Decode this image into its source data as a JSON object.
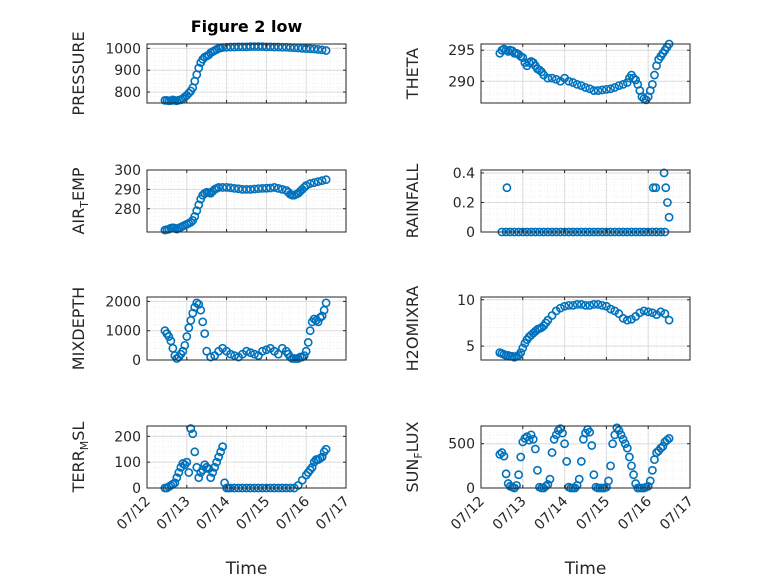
{
  "colors": {
    "marker": "#0072BD",
    "grid_major": "#dcdcdc",
    "grid_minor": "#ebebeb",
    "axis": "#262626"
  },
  "chart_data": [
    {
      "id": "pressure",
      "type": "scatter",
      "title": "Figure 2 low",
      "ylabel": "PRESSURE",
      "ylim": [
        750,
        1020
      ],
      "yticks": [
        800,
        900,
        1000
      ],
      "xlabel": "",
      "xlim": [
        0,
        5
      ],
      "xticks": [
        0,
        1,
        2,
        3,
        4,
        5
      ],
      "xticklabels": [
        "07/12",
        "07/13",
        "07/14",
        "07/15",
        "07/16",
        "07/17"
      ],
      "show_xticklabels": false,
      "grid": true,
      "marker": "o",
      "x": [
        0.45,
        0.5,
        0.55,
        0.6,
        0.65,
        0.7,
        0.75,
        0.8,
        0.85,
        0.9,
        0.95,
        1.0,
        1.05,
        1.1,
        1.15,
        1.2,
        1.25,
        1.3,
        1.35,
        1.4,
        1.45,
        1.5,
        1.55,
        1.6,
        1.65,
        1.7,
        1.75,
        1.8,
        1.85,
        1.9,
        2.0,
        2.1,
        2.2,
        2.3,
        2.4,
        2.5,
        2.6,
        2.7,
        2.8,
        2.9,
        3.0,
        3.1,
        3.2,
        3.3,
        3.4,
        3.5,
        3.6,
        3.7,
        3.8,
        3.9,
        4.0,
        4.1,
        4.2,
        4.3,
        4.4,
        4.5
      ],
      "y": [
        762,
        762,
        760,
        761,
        764,
        762,
        760,
        763,
        765,
        770,
        778,
        785,
        795,
        805,
        820,
        850,
        880,
        910,
        935,
        950,
        960,
        965,
        970,
        980,
        985,
        990,
        995,
        1000,
        1002,
        1004,
        1005,
        1006,
        1006,
        1007,
        1007,
        1007,
        1008,
        1008,
        1008,
        1008,
        1007,
        1007,
        1006,
        1006,
        1005,
        1005,
        1004,
        1003,
        1002,
        1000,
        999,
        998,
        997,
        995,
        993,
        990
      ]
    },
    {
      "id": "theta",
      "type": "scatter",
      "ylabel": "THETA",
      "ylim": [
        286.5,
        296
      ],
      "yticks": [
        290,
        295
      ],
      "xlabel": "",
      "xlim": [
        0,
        5
      ],
      "xticks": [
        0,
        1,
        2,
        3,
        4,
        5
      ],
      "xticklabels": [
        "07/12",
        "07/13",
        "07/14",
        "07/15",
        "07/16",
        "07/17"
      ],
      "show_xticklabels": false,
      "grid": true,
      "marker": "o",
      "x": [
        0.45,
        0.5,
        0.55,
        0.6,
        0.65,
        0.7,
        0.75,
        0.8,
        0.85,
        0.9,
        0.95,
        1.0,
        1.05,
        1.1,
        1.15,
        1.2,
        1.25,
        1.3,
        1.35,
        1.4,
        1.45,
        1.5,
        1.6,
        1.7,
        1.8,
        1.9,
        2.0,
        2.1,
        2.2,
        2.3,
        2.4,
        2.5,
        2.6,
        2.7,
        2.8,
        2.9,
        3.0,
        3.1,
        3.2,
        3.3,
        3.4,
        3.5,
        3.55,
        3.6,
        3.65,
        3.7,
        3.75,
        3.8,
        3.85,
        3.9,
        3.95,
        4.0,
        4.05,
        4.1,
        4.15,
        4.2,
        4.25,
        4.3,
        4.35,
        4.4,
        4.45,
        4.5
      ],
      "y": [
        294.5,
        295,
        295.2,
        295,
        294.8,
        295,
        294.9,
        294.5,
        294.5,
        294.3,
        294,
        293.8,
        293,
        292.5,
        293,
        293.2,
        293,
        292.5,
        292,
        291.8,
        291.5,
        291,
        290.5,
        290.5,
        290.3,
        290,
        290.5,
        290,
        289.8,
        289.5,
        289.3,
        289,
        288.8,
        288.5,
        288.5,
        288.6,
        288.7,
        288.8,
        289,
        289.3,
        289.5,
        289.8,
        290.5,
        291,
        290.5,
        290.2,
        289.5,
        288.5,
        287.5,
        287.2,
        287,
        287.5,
        288.5,
        289.5,
        291,
        292.5,
        293.5,
        294,
        294.5,
        295,
        295.5,
        296
      ]
    },
    {
      "id": "air_temp",
      "type": "scatter",
      "ylabel": "AIR",
      "ylabel_sub": "T",
      "ylabel_tail": "EMP",
      "ylim": [
        268,
        300
      ],
      "yticks": [
        280,
        290,
        300
      ],
      "xlabel": "",
      "xlim": [
        0,
        5
      ],
      "xticks": [
        0,
        1,
        2,
        3,
        4,
        5
      ],
      "xticklabels": [
        "07/12",
        "07/13",
        "07/14",
        "07/15",
        "07/16",
        "07/17"
      ],
      "show_xticklabels": false,
      "grid": true,
      "marker": "o",
      "x": [
        0.45,
        0.5,
        0.55,
        0.6,
        0.65,
        0.7,
        0.75,
        0.8,
        0.85,
        0.9,
        0.95,
        1.0,
        1.05,
        1.1,
        1.15,
        1.2,
        1.25,
        1.3,
        1.35,
        1.4,
        1.45,
        1.5,
        1.55,
        1.6,
        1.65,
        1.7,
        1.75,
        1.8,
        1.9,
        2.0,
        2.1,
        2.2,
        2.3,
        2.4,
        2.5,
        2.6,
        2.7,
        2.8,
        2.9,
        3.0,
        3.1,
        3.2,
        3.3,
        3.4,
        3.5,
        3.55,
        3.6,
        3.65,
        3.7,
        3.75,
        3.8,
        3.85,
        3.9,
        3.95,
        4.0,
        4.1,
        4.2,
        4.3,
        4.4,
        4.5
      ],
      "y": [
        269,
        269.2,
        269.5,
        270,
        270.2,
        270,
        269.5,
        270,
        270.5,
        271,
        271.5,
        272,
        272.5,
        273,
        274,
        276,
        279,
        282,
        285,
        287,
        288,
        288.5,
        288.3,
        288,
        289,
        290,
        290.5,
        291,
        291,
        291,
        290.8,
        290.5,
        290.3,
        290,
        290,
        290,
        290.2,
        290.4,
        290.5,
        290.6,
        290.7,
        291,
        290.5,
        290,
        289.5,
        288.5,
        287.5,
        287,
        287,
        287.5,
        288,
        289,
        290,
        291,
        292,
        293,
        293.5,
        294,
        294.5,
        295
      ]
    },
    {
      "id": "rainfall",
      "type": "scatter",
      "ylabel": "RAINFALL",
      "ylim": [
        0,
        0.42
      ],
      "yticks": [
        0,
        0.2,
        0.4
      ],
      "xlabel": "",
      "xlim": [
        0,
        5
      ],
      "xticks": [
        0,
        1,
        2,
        3,
        4,
        5
      ],
      "xticklabels": [
        "07/12",
        "07/13",
        "07/14",
        "07/15",
        "07/16",
        "07/17"
      ],
      "show_xticklabels": false,
      "grid": true,
      "marker": "o",
      "x": [
        0.5,
        0.6,
        0.7,
        0.8,
        0.9,
        1.0,
        1.1,
        1.2,
        1.3,
        1.4,
        1.5,
        1.6,
        1.7,
        1.8,
        1.9,
        2.0,
        2.1,
        2.2,
        2.3,
        2.4,
        2.5,
        2.6,
        2.7,
        2.8,
        2.9,
        3.0,
        3.1,
        3.2,
        3.3,
        3.4,
        3.5,
        3.6,
        3.7,
        3.8,
        3.9,
        4.0,
        4.1,
        4.2,
        4.3,
        4.4,
        0.62,
        4.12,
        4.18,
        4.38,
        4.42,
        4.46,
        4.5
      ],
      "y": [
        0,
        0,
        0,
        0,
        0,
        0,
        0,
        0,
        0,
        0,
        0,
        0,
        0,
        0,
        0,
        0,
        0,
        0,
        0,
        0,
        0,
        0,
        0,
        0,
        0,
        0,
        0,
        0,
        0,
        0,
        0,
        0,
        0,
        0,
        0,
        0,
        0,
        0,
        0,
        0,
        0.3,
        0.3,
        0.3,
        0.4,
        0.3,
        0.2,
        0.1
      ]
    },
    {
      "id": "mixdepth",
      "type": "scatter",
      "ylabel": "MIXDEPTH",
      "ylim": [
        0,
        2150
      ],
      "yticks": [
        0,
        1000,
        2000
      ],
      "xlabel": "",
      "xlim": [
        0,
        5
      ],
      "xticks": [
        0,
        1,
        2,
        3,
        4,
        5
      ],
      "xticklabels": [
        "07/12",
        "07/13",
        "07/14",
        "07/15",
        "07/16",
        "07/17"
      ],
      "show_xticklabels": false,
      "grid": true,
      "marker": "o",
      "x": [
        0.45,
        0.5,
        0.55,
        0.6,
        0.65,
        0.7,
        0.75,
        0.8,
        0.85,
        0.9,
        0.95,
        1.0,
        1.05,
        1.1,
        1.15,
        1.2,
        1.25,
        1.3,
        1.35,
        1.4,
        1.45,
        1.5,
        1.6,
        1.7,
        1.8,
        1.9,
        2.0,
        2.1,
        2.2,
        2.3,
        2.4,
        2.5,
        2.6,
        2.7,
        2.8,
        2.9,
        3.0,
        3.1,
        3.2,
        3.3,
        3.4,
        3.5,
        3.55,
        3.6,
        3.65,
        3.7,
        3.75,
        3.8,
        3.85,
        3.9,
        3.95,
        4.0,
        4.05,
        4.1,
        4.15,
        4.2,
        4.25,
        4.3,
        4.35,
        4.4,
        4.45,
        4.5
      ],
      "y": [
        1000,
        900,
        800,
        650,
        400,
        150,
        50,
        100,
        200,
        300,
        500,
        800,
        1100,
        1350,
        1600,
        1800,
        1950,
        1900,
        1700,
        1300,
        900,
        300,
        100,
        150,
        300,
        400,
        300,
        200,
        150,
        100,
        200,
        300,
        250,
        200,
        150,
        300,
        350,
        400,
        300,
        200,
        400,
        300,
        200,
        100,
        50,
        50,
        50,
        50,
        100,
        100,
        150,
        300,
        600,
        1000,
        1300,
        1400,
        1350,
        1300,
        1450,
        1500,
        1700,
        1950
      ]
    },
    {
      "id": "h2omixra",
      "type": "scatter",
      "ylabel": "H2OMIXRA",
      "ylim": [
        3.5,
        10.3
      ],
      "yticks": [
        5,
        10
      ],
      "xlabel": "",
      "xlim": [
        0,
        5
      ],
      "xticks": [
        0,
        1,
        2,
        3,
        4,
        5
      ],
      "xticklabels": [
        "07/12",
        "07/13",
        "07/14",
        "07/15",
        "07/16",
        "07/17"
      ],
      "show_xticklabels": false,
      "grid": true,
      "marker": "o",
      "x": [
        0.45,
        0.5,
        0.55,
        0.6,
        0.65,
        0.7,
        0.75,
        0.8,
        0.85,
        0.9,
        0.95,
        1.0,
        1.05,
        1.1,
        1.15,
        1.2,
        1.25,
        1.3,
        1.35,
        1.4,
        1.45,
        1.5,
        1.55,
        1.6,
        1.7,
        1.8,
        1.9,
        2.0,
        2.1,
        2.2,
        2.3,
        2.4,
        2.5,
        2.6,
        2.7,
        2.8,
        2.9,
        3.0,
        3.1,
        3.2,
        3.3,
        3.4,
        3.5,
        3.6,
        3.7,
        3.8,
        3.9,
        4.0,
        4.1,
        4.2,
        4.3,
        4.4,
        4.5
      ],
      "y": [
        4.3,
        4.2,
        4.1,
        4.0,
        4.0,
        3.9,
        3.9,
        3.8,
        3.9,
        4.0,
        4.3,
        4.8,
        5.3,
        5.7,
        6.0,
        6.2,
        6.4,
        6.6,
        6.8,
        6.9,
        7.0,
        7.2,
        7.5,
        7.8,
        8.3,
        8.8,
        9.1,
        9.3,
        9.4,
        9.4,
        9.5,
        9.5,
        9.4,
        9.4,
        9.5,
        9.5,
        9.4,
        9.3,
        9.0,
        8.8,
        8.5,
        8.0,
        7.8,
        7.9,
        8.2,
        8.6,
        8.8,
        8.7,
        8.6,
        8.4,
        8.7,
        8.5,
        7.8
      ]
    },
    {
      "id": "terr_msl",
      "type": "scatter",
      "ylabel": "TERR",
      "ylabel_sub": "M",
      "ylabel_tail": "SL",
      "ylim": [
        0,
        240
      ],
      "yticks": [
        0,
        100,
        200
      ],
      "xlabel": "Time",
      "xlim": [
        0,
        5
      ],
      "xticks": [
        0,
        1,
        2,
        3,
        4,
        5
      ],
      "xticklabels": [
        "07/12",
        "07/13",
        "07/14",
        "07/15",
        "07/16",
        "07/17"
      ],
      "show_xticklabels": true,
      "grid": true,
      "marker": "o",
      "x": [
        0.45,
        0.5,
        0.55,
        0.6,
        0.65,
        0.7,
        0.75,
        0.8,
        0.85,
        0.9,
        0.95,
        1.0,
        1.05,
        1.1,
        1.15,
        1.2,
        1.25,
        1.3,
        1.35,
        1.4,
        1.45,
        1.5,
        1.55,
        1.6,
        1.65,
        1.7,
        1.75,
        1.8,
        1.85,
        1.9,
        1.95,
        2.0,
        2.05,
        2.1,
        2.2,
        2.3,
        2.4,
        2.5,
        2.6,
        2.7,
        2.8,
        2.9,
        3.0,
        3.1,
        3.2,
        3.3,
        3.4,
        3.5,
        3.6,
        3.7,
        3.8,
        3.9,
        4.0,
        4.05,
        4.1,
        4.15,
        4.2,
        4.25,
        4.3,
        4.35,
        4.4,
        4.45,
        4.5
      ],
      "y": [
        0,
        0,
        5,
        10,
        15,
        20,
        40,
        60,
        80,
        95,
        90,
        100,
        60,
        230,
        210,
        140,
        80,
        40,
        60,
        70,
        90,
        80,
        75,
        40,
        60,
        80,
        100,
        120,
        140,
        160,
        20,
        0,
        0,
        0,
        0,
        0,
        0,
        0,
        0,
        0,
        0,
        0,
        0,
        0,
        0,
        0,
        0,
        0,
        0,
        0,
        10,
        30,
        50,
        60,
        70,
        80,
        100,
        110,
        110,
        115,
        120,
        140,
        150
      ]
    },
    {
      "id": "sun_flux",
      "type": "scatter",
      "ylabel": "SUN",
      "ylabel_sub": "F",
      "ylabel_tail": "LUX",
      "ylim": [
        0,
        700
      ],
      "yticks": [
        0,
        500
      ],
      "xlabel": "Time",
      "xlim": [
        0,
        5
      ],
      "xticks": [
        0,
        1,
        2,
        3,
        4,
        5
      ],
      "xticklabels": [
        "07/12",
        "07/13",
        "07/14",
        "07/15",
        "07/16",
        "07/17"
      ],
      "show_xticklabels": true,
      "grid": true,
      "marker": "o",
      "x": [
        0.45,
        0.5,
        0.55,
        0.6,
        0.65,
        0.7,
        0.75,
        0.8,
        0.85,
        0.9,
        0.95,
        1.0,
        1.05,
        1.1,
        1.15,
        1.2,
        1.25,
        1.3,
        1.35,
        1.4,
        1.45,
        1.5,
        1.55,
        1.6,
        1.65,
        1.7,
        1.75,
        1.8,
        1.85,
        1.9,
        1.95,
        2.0,
        2.05,
        2.1,
        2.15,
        2.2,
        2.25,
        2.3,
        2.35,
        2.4,
        2.45,
        2.5,
        2.55,
        2.6,
        2.65,
        2.7,
        2.75,
        2.8,
        2.85,
        2.9,
        2.95,
        3.0,
        3.05,
        3.1,
        3.15,
        3.2,
        3.25,
        3.3,
        3.35,
        3.4,
        3.45,
        3.5,
        3.55,
        3.6,
        3.65,
        3.7,
        3.75,
        3.8,
        3.85,
        3.9,
        3.95,
        4.0,
        4.05,
        4.1,
        4.15,
        4.2,
        4.25,
        4.3,
        4.35,
        4.4,
        4.45,
        4.5
      ],
      "y": [
        380,
        400,
        360,
        160,
        50,
        20,
        10,
        0,
        30,
        150,
        350,
        520,
        560,
        580,
        540,
        600,
        550,
        440,
        200,
        10,
        0,
        0,
        20,
        40,
        100,
        400,
        550,
        600,
        650,
        670,
        620,
        500,
        300,
        10,
        0,
        0,
        0,
        30,
        100,
        300,
        550,
        620,
        660,
        630,
        480,
        150,
        10,
        0,
        0,
        0,
        0,
        10,
        80,
        250,
        500,
        600,
        680,
        650,
        600,
        550,
        500,
        450,
        350,
        250,
        150,
        50,
        0,
        0,
        0,
        0,
        10,
        20,
        80,
        200,
        320,
        400,
        420,
        450,
        470,
        520,
        540,
        560
      ]
    }
  ]
}
